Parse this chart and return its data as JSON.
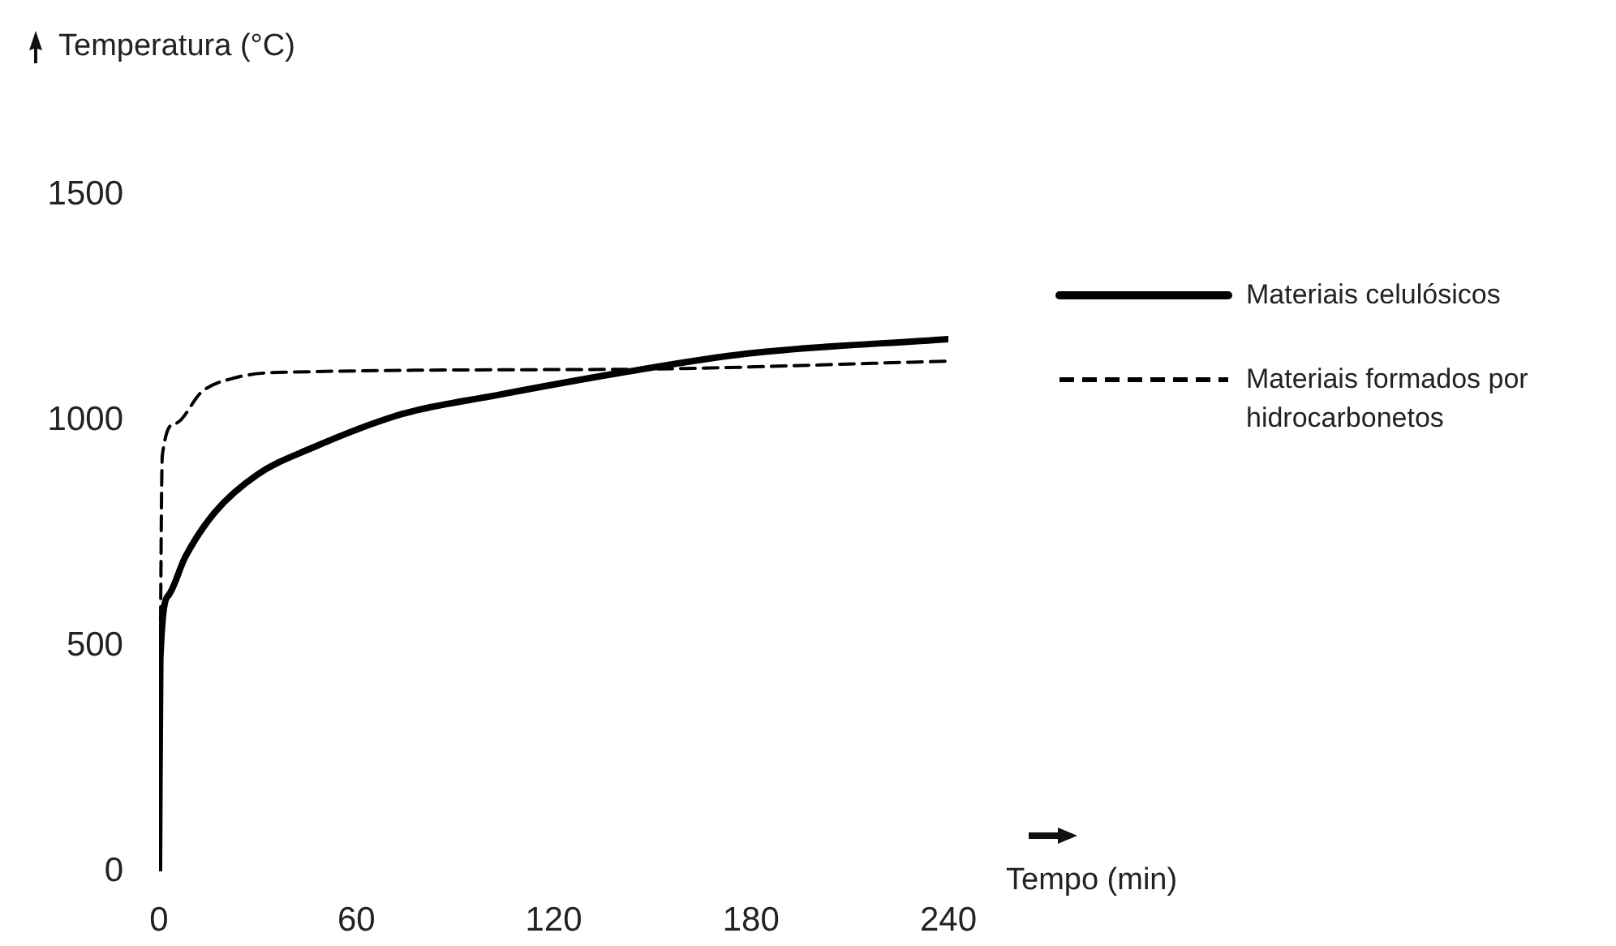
{
  "chart_data": {
    "type": "line",
    "ylabel": "Temperatura (°C)",
    "xlabel": "Tempo (min)",
    "xlim": [
      0,
      240
    ],
    "xticks": [
      0,
      60,
      120,
      180,
      240
    ],
    "ylim": [
      0,
      1500
    ],
    "yticks": [
      0,
      500,
      1000,
      1500
    ],
    "grid": false,
    "legend": "right",
    "marker": "none",
    "series": [
      {
        "name": "Materiais celulósicos",
        "color": "#000000",
        "line_style": "solid",
        "x": [
          0,
          0.4,
          3,
          8,
          17,
          30,
          46,
          74,
          103,
          141,
          179,
          240
        ],
        "values": [
          0,
          472,
          613,
          697,
          796,
          880,
          937,
          1014,
          1056,
          1106,
          1148,
          1180
        ]
      },
      {
        "name": "Materiais formados por hidrocarbonetos",
        "color": "#000000",
        "line_style": "dashed",
        "x": [
          0,
          1,
          5,
          13,
          23,
          36,
          141,
          240
        ],
        "values": [
          0,
          922,
          993,
          1063,
          1094,
          1106,
          1113,
          1131
        ]
      }
    ]
  }
}
